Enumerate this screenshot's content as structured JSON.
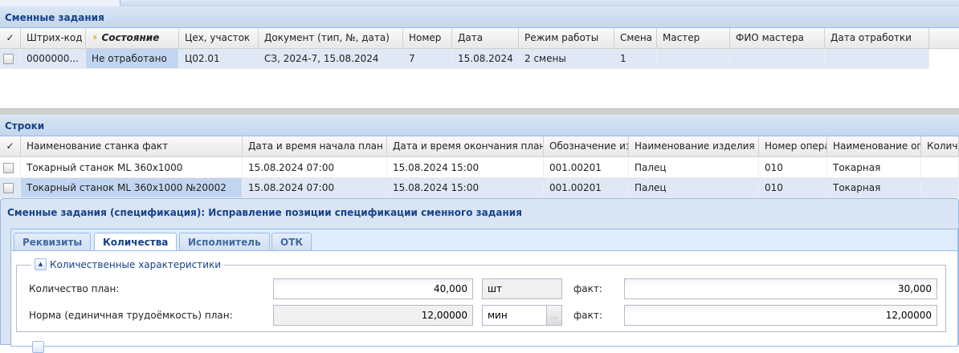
{
  "top_panel": {
    "title": "Сменные задания",
    "columns": [
      "✓",
      "Штрих-код",
      "Состояние",
      "Цех, участок",
      "Документ (тип, №, дата)",
      "Номер",
      "Дата",
      "Режим работы",
      "Смена",
      "Мастер",
      "ФИО мастера",
      "Дата отработки"
    ],
    "rows": [
      [
        "",
        "0000000...",
        "Не отработано",
        "Ц02.01",
        "СЗ, 2024-7, 15.08.2024",
        "7",
        "15.08.2024",
        "2 смены",
        "1",
        "",
        "",
        ""
      ]
    ]
  },
  "lines_panel": {
    "title": "Строки",
    "columns": [
      "✓",
      "Наименование станка факт",
      "Дата и время начала план",
      "Дата и время окончания план...",
      "Обозначение изд",
      "Наименование изделия",
      "Номер опера",
      "Наименование опе",
      "Количе"
    ],
    "rows": [
      [
        "",
        "Токарный станок ML 360x1000",
        "15.08.2024 07:00",
        "15.08.2024 15:00",
        "001.00201",
        "Палец",
        "010",
        "Токарная",
        ""
      ],
      [
        "",
        "Токарный станок ML 360x1000 №20002",
        "15.08.2024 07:00",
        "15.08.2024 15:00",
        "001.00201",
        "Палец",
        "010",
        "Токарная",
        ""
      ]
    ]
  },
  "dialog": {
    "title": "Сменные задания (спецификация): Исправление позиции спецификации сменного задания",
    "tabs": [
      "Реквизиты",
      "Количества",
      "Исполнитель",
      "ОТК"
    ],
    "active_tab": "Количества",
    "section": "Количественные характеристики",
    "fields": [
      {
        "label": "Количество план:",
        "plan": "40,000",
        "unit": "шт",
        "fact_label": "факт:",
        "fact": "30,000"
      },
      {
        "label": "Норма (единичная трудоёмкость) план:",
        "plan": "12,00000",
        "unit": "мин",
        "unit_button": "...",
        "fact_label": "факт:",
        "fact": "12,00000"
      }
    ]
  },
  "colors": {
    "header_text": "#15428b",
    "border": "#99bbe8",
    "selected_cell": "#c1d5f0",
    "row_alt": "#e0e8f5"
  }
}
